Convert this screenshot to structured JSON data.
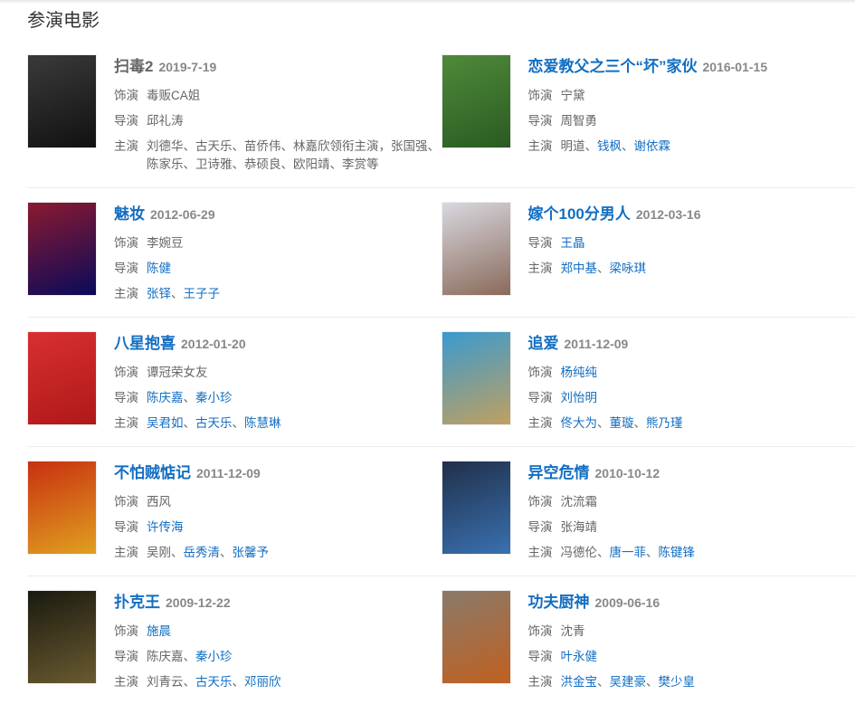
{
  "section_title": "参演电影",
  "movies": [
    {
      "title": "扫毒2",
      "title_link": false,
      "date": "2019-7-19",
      "poster_colors": [
        "#3a3a3a",
        "#111111"
      ],
      "lines": [
        {
          "label": "饰演",
          "names": [
            {
              "text": "毒贩CA姐",
              "link": false
            }
          ]
        },
        {
          "label": "导演",
          "names": [
            {
              "text": "邱礼涛",
              "link": false
            }
          ]
        },
        {
          "label": "主演",
          "names": [
            {
              "text": "刘德华、古天乐、苗侨伟、林嘉欣领衔主演，张国强、陈家乐、卫诗雅、恭硕良、欧阳靖、李赏等",
              "link": false
            }
          ]
        }
      ]
    },
    {
      "title": "恋爱教父之三个“坏”家伙",
      "title_link": true,
      "date": "2016-01-15",
      "poster_colors": [
        "#4f8a3a",
        "#2a5a22"
      ],
      "lines": [
        {
          "label": "饰演",
          "names": [
            {
              "text": "宁黛",
              "link": false
            }
          ]
        },
        {
          "label": "导演",
          "names": [
            {
              "text": "周智勇",
              "link": false
            }
          ]
        },
        {
          "label": "主演",
          "names": [
            {
              "text": "明道",
              "link": false
            },
            {
              "text": "钱枫",
              "link": true
            },
            {
              "text": "谢依霖",
              "link": true
            }
          ]
        }
      ]
    },
    {
      "title": "魅妆",
      "title_link": true,
      "date": "2012-06-29",
      "poster_colors": [
        "#8a1a30",
        "#0a0a5a"
      ],
      "lines": [
        {
          "label": "饰演",
          "names": [
            {
              "text": "李婉豆",
              "link": false
            }
          ]
        },
        {
          "label": "导演",
          "names": [
            {
              "text": "陈健",
              "link": true
            }
          ]
        },
        {
          "label": "主演",
          "names": [
            {
              "text": "张铎",
              "link": true
            },
            {
              "text": "王子子",
              "link": true
            }
          ]
        }
      ]
    },
    {
      "title": "嫁个100分男人",
      "title_link": true,
      "date": "2012-03-16",
      "poster_colors": [
        "#d8d8e0",
        "#8a6a5a"
      ],
      "lines": [
        {
          "label": "导演",
          "names": [
            {
              "text": "王晶",
              "link": true
            }
          ]
        },
        {
          "label": "主演",
          "names": [
            {
              "text": "郑中基",
              "link": true
            },
            {
              "text": "梁咏琪",
              "link": true
            }
          ]
        }
      ]
    },
    {
      "title": "八星抱喜",
      "title_link": true,
      "date": "2012-01-20",
      "poster_colors": [
        "#d83030",
        "#b01818"
      ],
      "lines": [
        {
          "label": "饰演",
          "names": [
            {
              "text": "谭冠荣女友",
              "link": false
            }
          ]
        },
        {
          "label": "导演",
          "names": [
            {
              "text": "陈庆嘉",
              "link": true
            },
            {
              "text": "秦小珍",
              "link": true
            }
          ]
        },
        {
          "label": "主演",
          "names": [
            {
              "text": "吴君如",
              "link": true
            },
            {
              "text": "古天乐",
              "link": true
            },
            {
              "text": "陈慧琳",
              "link": true
            }
          ]
        }
      ]
    },
    {
      "title": "追爱",
      "title_link": true,
      "date": "2011-12-09",
      "poster_colors": [
        "#3a9ad0",
        "#c0a060"
      ],
      "lines": [
        {
          "label": "饰演",
          "names": [
            {
              "text": "杨纯纯",
              "link": true
            }
          ]
        },
        {
          "label": "导演",
          "names": [
            {
              "text": "刘怡明",
              "link": true
            }
          ]
        },
        {
          "label": "主演",
          "names": [
            {
              "text": "佟大为",
              "link": true
            },
            {
              "text": "董璇",
              "link": true
            },
            {
              "text": "熊乃瑾",
              "link": true
            }
          ]
        }
      ]
    },
    {
      "title": "不怕贼惦记",
      "title_link": true,
      "date": "2011-12-09",
      "poster_colors": [
        "#c83010",
        "#e0a020"
      ],
      "lines": [
        {
          "label": "饰演",
          "names": [
            {
              "text": "西风",
              "link": false
            }
          ]
        },
        {
          "label": "导演",
          "names": [
            {
              "text": "许传海",
              "link": true
            }
          ]
        },
        {
          "label": "主演",
          "names": [
            {
              "text": "吴刚",
              "link": false
            },
            {
              "text": "岳秀清",
              "link": true
            },
            {
              "text": "张馨予",
              "link": true
            }
          ]
        }
      ]
    },
    {
      "title": "异空危情",
      "title_link": true,
      "date": "2010-10-12",
      "poster_colors": [
        "#20304a",
        "#3a70b0"
      ],
      "lines": [
        {
          "label": "饰演",
          "names": [
            {
              "text": "沈流霜",
              "link": false
            }
          ]
        },
        {
          "label": "导演",
          "names": [
            {
              "text": "张海靖",
              "link": false
            }
          ]
        },
        {
          "label": "主演",
          "names": [
            {
              "text": "冯德伦",
              "link": false
            },
            {
              "text": "唐一菲",
              "link": true
            },
            {
              "text": "陈键锋",
              "link": true
            }
          ]
        }
      ]
    },
    {
      "title": "扑克王",
      "title_link": true,
      "date": "2009-12-22",
      "poster_colors": [
        "#1a1a10",
        "#6a5a30"
      ],
      "lines": [
        {
          "label": "饰演",
          "names": [
            {
              "text": "施晨",
              "link": true
            }
          ]
        },
        {
          "label": "导演",
          "names": [
            {
              "text": "陈庆嘉",
              "link": false
            },
            {
              "text": "秦小珍",
              "link": true
            }
          ]
        },
        {
          "label": "主演",
          "names": [
            {
              "text": "刘青云",
              "link": false
            },
            {
              "text": "古天乐",
              "link": true
            },
            {
              "text": "邓丽欣",
              "link": true
            }
          ]
        }
      ]
    },
    {
      "title": "功夫厨神",
      "title_link": true,
      "date": "2009-06-16",
      "poster_colors": [
        "#8a7a6a",
        "#c06020"
      ],
      "lines": [
        {
          "label": "饰演",
          "names": [
            {
              "text": "沈青",
              "link": false
            }
          ]
        },
        {
          "label": "导演",
          "names": [
            {
              "text": "叶永健",
              "link": true
            }
          ]
        },
        {
          "label": "主演",
          "names": [
            {
              "text": "洪金宝",
              "link": true
            },
            {
              "text": "吴建豪",
              "link": true
            },
            {
              "text": "樊少皇",
              "link": true
            }
          ]
        }
      ]
    }
  ],
  "separator": "、"
}
